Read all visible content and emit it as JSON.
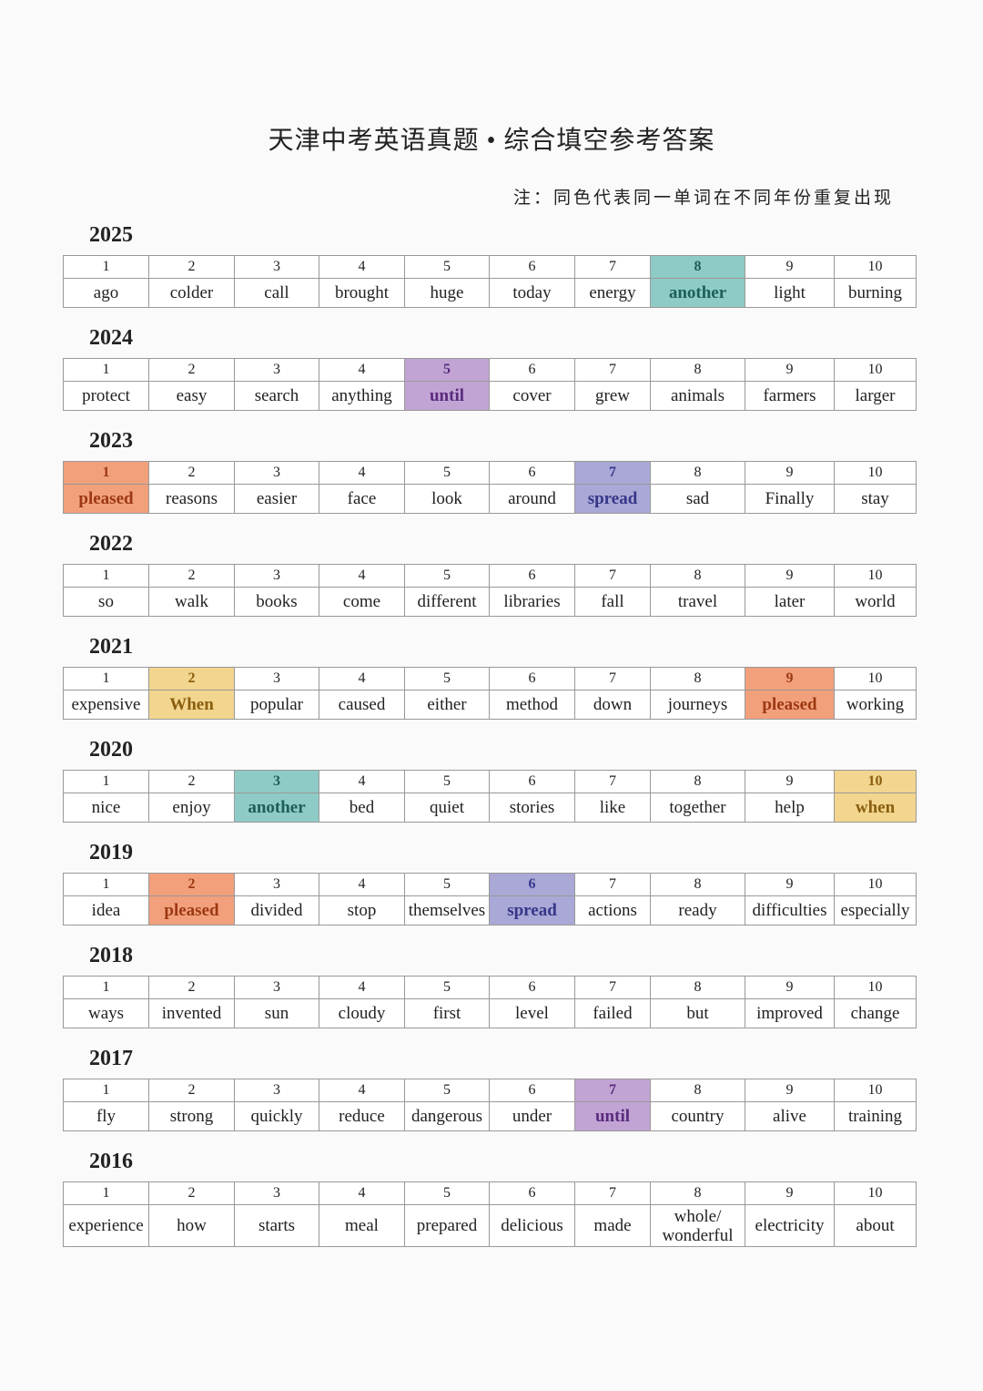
{
  "title": "天津中考英语真题 • 综合填空参考答案",
  "note": "注：同色代表同一单词在不同年份重复出现",
  "years": [
    {
      "year": "2025",
      "cells": [
        {
          "n": 1,
          "word": "ago"
        },
        {
          "n": 2,
          "word": "colder"
        },
        {
          "n": 3,
          "word": "call"
        },
        {
          "n": 4,
          "word": "brought"
        },
        {
          "n": 5,
          "word": "huge"
        },
        {
          "n": 6,
          "word": "today"
        },
        {
          "n": 7,
          "word": "energy"
        },
        {
          "n": 8,
          "word": "another",
          "color": "#8ecbc6",
          "text_color": "#1d5e5a"
        },
        {
          "n": 9,
          "word": "light"
        },
        {
          "n": 10,
          "word": "burning"
        }
      ]
    },
    {
      "year": "2024",
      "cells": [
        {
          "n": 1,
          "word": "protect"
        },
        {
          "n": 2,
          "word": "easy"
        },
        {
          "n": 3,
          "word": "search"
        },
        {
          "n": 4,
          "word": "anything"
        },
        {
          "n": 5,
          "word": "until",
          "color": "#c1a4d4",
          "text_color": "#5a2a7e"
        },
        {
          "n": 6,
          "word": "cover"
        },
        {
          "n": 7,
          "word": "grew"
        },
        {
          "n": 8,
          "word": "animals"
        },
        {
          "n": 9,
          "word": "farmers"
        },
        {
          "n": 10,
          "word": "larger"
        }
      ]
    },
    {
      "year": "2023",
      "cells": [
        {
          "n": 1,
          "word": "pleased",
          "color": "#f2a07c",
          "text_color": "#9c3812"
        },
        {
          "n": 2,
          "word": "reasons"
        },
        {
          "n": 3,
          "word": "easier"
        },
        {
          "n": 4,
          "word": "face"
        },
        {
          "n": 5,
          "word": "look"
        },
        {
          "n": 6,
          "word": "around"
        },
        {
          "n": 7,
          "word": "spread",
          "color": "#a9a8d6",
          "text_color": "#36368a"
        },
        {
          "n": 8,
          "word": "sad"
        },
        {
          "n": 9,
          "word": "Finally"
        },
        {
          "n": 10,
          "word": "stay"
        }
      ]
    },
    {
      "year": "2022",
      "cells": [
        {
          "n": 1,
          "word": "so"
        },
        {
          "n": 2,
          "word": "walk"
        },
        {
          "n": 3,
          "word": "books"
        },
        {
          "n": 4,
          "word": "come"
        },
        {
          "n": 5,
          "word": "different"
        },
        {
          "n": 6,
          "word": "libraries"
        },
        {
          "n": 7,
          "word": "fall"
        },
        {
          "n": 8,
          "word": "travel"
        },
        {
          "n": 9,
          "word": "later"
        },
        {
          "n": 10,
          "word": "world"
        }
      ]
    },
    {
      "year": "2021",
      "cells": [
        {
          "n": 1,
          "word": "expensive"
        },
        {
          "n": 2,
          "word": "When",
          "color": "#f2d58e",
          "text_color": "#8a5e0e"
        },
        {
          "n": 3,
          "word": "popular"
        },
        {
          "n": 4,
          "word": "caused"
        },
        {
          "n": 5,
          "word": "either"
        },
        {
          "n": 6,
          "word": "method"
        },
        {
          "n": 7,
          "word": "down"
        },
        {
          "n": 8,
          "word": "journeys"
        },
        {
          "n": 9,
          "word": "pleased",
          "color": "#f2a07c",
          "text_color": "#9c3812"
        },
        {
          "n": 10,
          "word": "working"
        }
      ]
    },
    {
      "year": "2020",
      "cells": [
        {
          "n": 1,
          "word": "nice"
        },
        {
          "n": 2,
          "word": "enjoy"
        },
        {
          "n": 3,
          "word": "another",
          "color": "#8ecbc6",
          "text_color": "#1d5e5a"
        },
        {
          "n": 4,
          "word": "bed"
        },
        {
          "n": 5,
          "word": "quiet"
        },
        {
          "n": 6,
          "word": "stories"
        },
        {
          "n": 7,
          "word": "like"
        },
        {
          "n": 8,
          "word": "together"
        },
        {
          "n": 9,
          "word": "help"
        },
        {
          "n": 10,
          "word": "when",
          "color": "#f2d58e",
          "text_color": "#8a5e0e"
        }
      ]
    },
    {
      "year": "2019",
      "cells": [
        {
          "n": 1,
          "word": "idea"
        },
        {
          "n": 2,
          "word": "pleased",
          "color": "#f2a07c",
          "text_color": "#9c3812"
        },
        {
          "n": 3,
          "word": "divided"
        },
        {
          "n": 4,
          "word": "stop"
        },
        {
          "n": 5,
          "word": "themselves"
        },
        {
          "n": 6,
          "word": "spread",
          "color": "#a9a8d6",
          "text_color": "#36368a"
        },
        {
          "n": 7,
          "word": "actions"
        },
        {
          "n": 8,
          "word": "ready"
        },
        {
          "n": 9,
          "word": "difficulties"
        },
        {
          "n": 10,
          "word": "especially"
        }
      ]
    },
    {
      "year": "2018",
      "cells": [
        {
          "n": 1,
          "word": "ways"
        },
        {
          "n": 2,
          "word": "invented"
        },
        {
          "n": 3,
          "word": "sun"
        },
        {
          "n": 4,
          "word": "cloudy"
        },
        {
          "n": 5,
          "word": "first"
        },
        {
          "n": 6,
          "word": "level"
        },
        {
          "n": 7,
          "word": "failed"
        },
        {
          "n": 8,
          "word": "but"
        },
        {
          "n": 9,
          "word": "improved"
        },
        {
          "n": 10,
          "word": "change"
        }
      ]
    },
    {
      "year": "2017",
      "cells": [
        {
          "n": 1,
          "word": "fly"
        },
        {
          "n": 2,
          "word": "strong"
        },
        {
          "n": 3,
          "word": "quickly"
        },
        {
          "n": 4,
          "word": "reduce"
        },
        {
          "n": 5,
          "word": "dangerous"
        },
        {
          "n": 6,
          "word": "under"
        },
        {
          "n": 7,
          "word": "until",
          "color": "#c1a4d4",
          "text_color": "#5a2a7e"
        },
        {
          "n": 8,
          "word": "country"
        },
        {
          "n": 9,
          "word": "alive"
        },
        {
          "n": 10,
          "word": "training"
        }
      ]
    },
    {
      "year": "2016",
      "cells": [
        {
          "n": 1,
          "word": "experience"
        },
        {
          "n": 2,
          "word": "how"
        },
        {
          "n": 3,
          "word": "starts"
        },
        {
          "n": 4,
          "word": "meal"
        },
        {
          "n": 5,
          "word": "prepared"
        },
        {
          "n": 6,
          "word": "delicious"
        },
        {
          "n": 7,
          "word": "made"
        },
        {
          "n": 8,
          "word": "whole/ wonderful"
        },
        {
          "n": 9,
          "word": "electricity"
        },
        {
          "n": 10,
          "word": "about"
        }
      ]
    }
  ]
}
